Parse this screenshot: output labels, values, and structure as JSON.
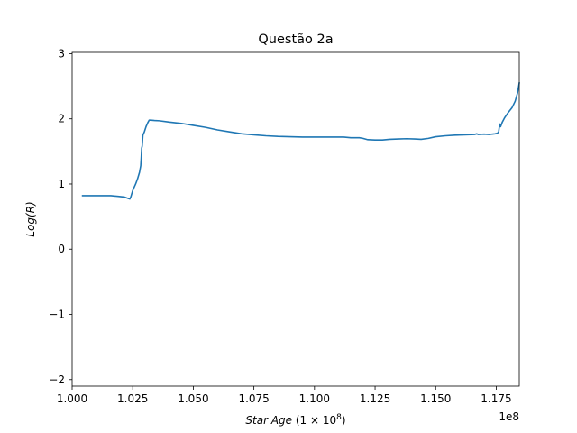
{
  "chart_data": {
    "type": "line",
    "title": "Questão 2a",
    "xlabel": {
      "italic": "Star Age",
      "rest": " (1 × 10",
      "sup": "8",
      "close": ")"
    },
    "ylabel": "Log(R)",
    "x_offset_text": "1e8",
    "xlim": [
      1.0,
      1.1845
    ],
    "ylim": [
      -2.1,
      3.02
    ],
    "x_ticks": [
      1.0,
      1.025,
      1.05,
      1.075,
      1.1,
      1.125,
      1.15,
      1.175
    ],
    "x_tick_labels": [
      "1.000",
      "1.025",
      "1.050",
      "1.075",
      "1.100",
      "1.125",
      "1.150",
      "1.175"
    ],
    "y_ticks": [
      -2,
      -1,
      0,
      1,
      2,
      3
    ],
    "y_tick_labels": [
      "−2",
      "−1",
      "0",
      "1",
      "2",
      "3"
    ],
    "grid": false,
    "line_color": "#1f77b4",
    "series": [
      {
        "x": [
          1.0043,
          1.008,
          1.012,
          1.016,
          1.019,
          1.0215,
          1.023,
          1.0238,
          1.0242,
          1.025,
          1.0262,
          1.027,
          1.0278,
          1.0283,
          1.0285,
          1.0287,
          1.0289,
          1.0292,
          1.0298,
          1.0305,
          1.0312,
          1.0318,
          1.0325,
          1.034,
          1.036,
          1.04,
          1.045,
          1.05,
          1.055,
          1.06,
          1.065,
          1.07,
          1.075,
          1.08,
          1.085,
          1.09,
          1.095,
          1.1,
          1.105,
          1.11,
          1.112,
          1.115,
          1.1185,
          1.12,
          1.122,
          1.125,
          1.128,
          1.131,
          1.1345,
          1.138,
          1.1415,
          1.144,
          1.147,
          1.15,
          1.154,
          1.158,
          1.162,
          1.166,
          1.167,
          1.1675,
          1.17,
          1.172,
          1.1745,
          1.1755,
          1.176,
          1.1762,
          1.1765,
          1.1768,
          1.1775,
          1.1785,
          1.18,
          1.1815,
          1.1828,
          1.1838,
          1.1845
        ],
        "y": [
          0.82,
          0.82,
          0.82,
          0.82,
          0.81,
          0.8,
          0.78,
          0.77,
          0.8,
          0.9,
          1.0,
          1.08,
          1.18,
          1.28,
          1.4,
          1.55,
          1.58,
          1.75,
          1.8,
          1.88,
          1.94,
          1.98,
          1.98,
          1.975,
          1.97,
          1.95,
          1.93,
          1.9,
          1.87,
          1.83,
          1.8,
          1.77,
          1.755,
          1.74,
          1.73,
          1.725,
          1.72,
          1.72,
          1.72,
          1.72,
          1.72,
          1.71,
          1.71,
          1.7,
          1.68,
          1.675,
          1.675,
          1.685,
          1.69,
          1.695,
          1.69,
          1.685,
          1.7,
          1.725,
          1.74,
          1.75,
          1.755,
          1.76,
          1.77,
          1.76,
          1.765,
          1.76,
          1.77,
          1.78,
          1.8,
          1.86,
          1.92,
          1.88,
          1.95,
          2.02,
          2.1,
          2.17,
          2.27,
          2.4,
          2.55
        ]
      }
    ]
  }
}
